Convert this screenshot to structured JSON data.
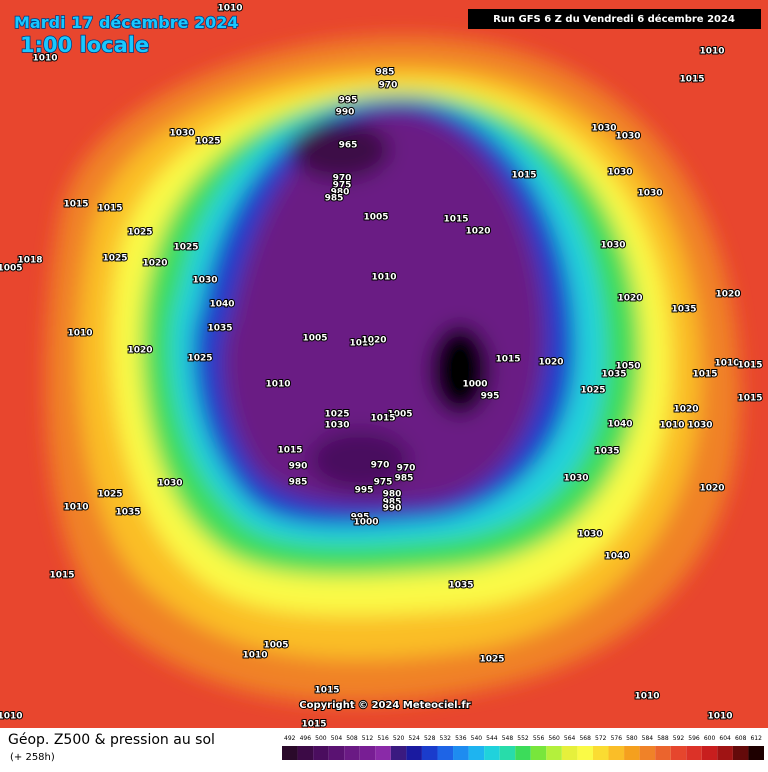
{
  "header": {
    "date": "Mardi 17 décembre 2024",
    "time": "1:00 locale",
    "run": "Run GFS 6 Z du Vendredi 6 décembre 2024"
  },
  "map": {
    "isobar_labels": [
      1010,
      1010,
      985,
      970,
      995,
      990,
      965,
      970,
      975,
      980,
      985,
      1030,
      1025,
      1015,
      1015,
      1025,
      1025,
      1020,
      1025,
      1018,
      1005,
      1030,
      1040,
      1035,
      1010,
      1020,
      1025,
      1010,
      1005,
      1010,
      1020,
      1010,
      1005,
      1015,
      1020,
      1015,
      1030,
      1030,
      1030,
      1030,
      1030,
      1020,
      1035,
      1020,
      1010,
      1015,
      1015,
      1020,
      1000,
      995,
      1050,
      1035,
      1025,
      1020,
      1010,
      1030,
      1010,
      1015,
      1015,
      1015,
      1040,
      1035,
      1030,
      1020,
      1030,
      1040,
      1035,
      1025,
      1010,
      1010,
      1005,
      1025,
      1030,
      1015,
      990,
      985,
      995,
      975,
      980,
      985,
      990,
      970,
      985,
      970,
      995,
      1000,
      1015,
      1025,
      1030,
      1010,
      1035,
      1015,
      1005,
      1010,
      1015,
      1015,
      1010
    ],
    "copyright": "Copyright © 2024 Meteociel.fr"
  },
  "footer": {
    "title": "Géop. Z500 & pression au sol",
    "lead": "(+ 258h)"
  },
  "scale": {
    "labels": [
      492,
      496,
      500,
      504,
      508,
      512,
      516,
      520,
      524,
      528,
      532,
      536,
      540,
      544,
      548,
      552,
      556,
      560,
      564,
      568,
      572,
      576,
      580,
      584,
      588,
      592,
      596,
      600,
      604,
      608,
      612
    ],
    "colors": [
      "#2a0a2a",
      "#3c0a46",
      "#4a0d5e",
      "#5a1272",
      "#6a1a84",
      "#781e94",
      "#8a2aa8",
      "#3a1a80",
      "#1a1aa0",
      "#1a3ccc",
      "#1e64e6",
      "#1e8cf0",
      "#1eb4f0",
      "#20d2dc",
      "#28dcaa",
      "#3cdc5a",
      "#78e63c",
      "#b4f03c",
      "#e6f03c",
      "#fafa46",
      "#fadc32",
      "#fabe28",
      "#f5a01e",
      "#f08228",
      "#eb642d",
      "#e6462d",
      "#dc3228",
      "#c81e1e",
      "#a01414",
      "#640a0a",
      "#1e0000"
    ]
  }
}
